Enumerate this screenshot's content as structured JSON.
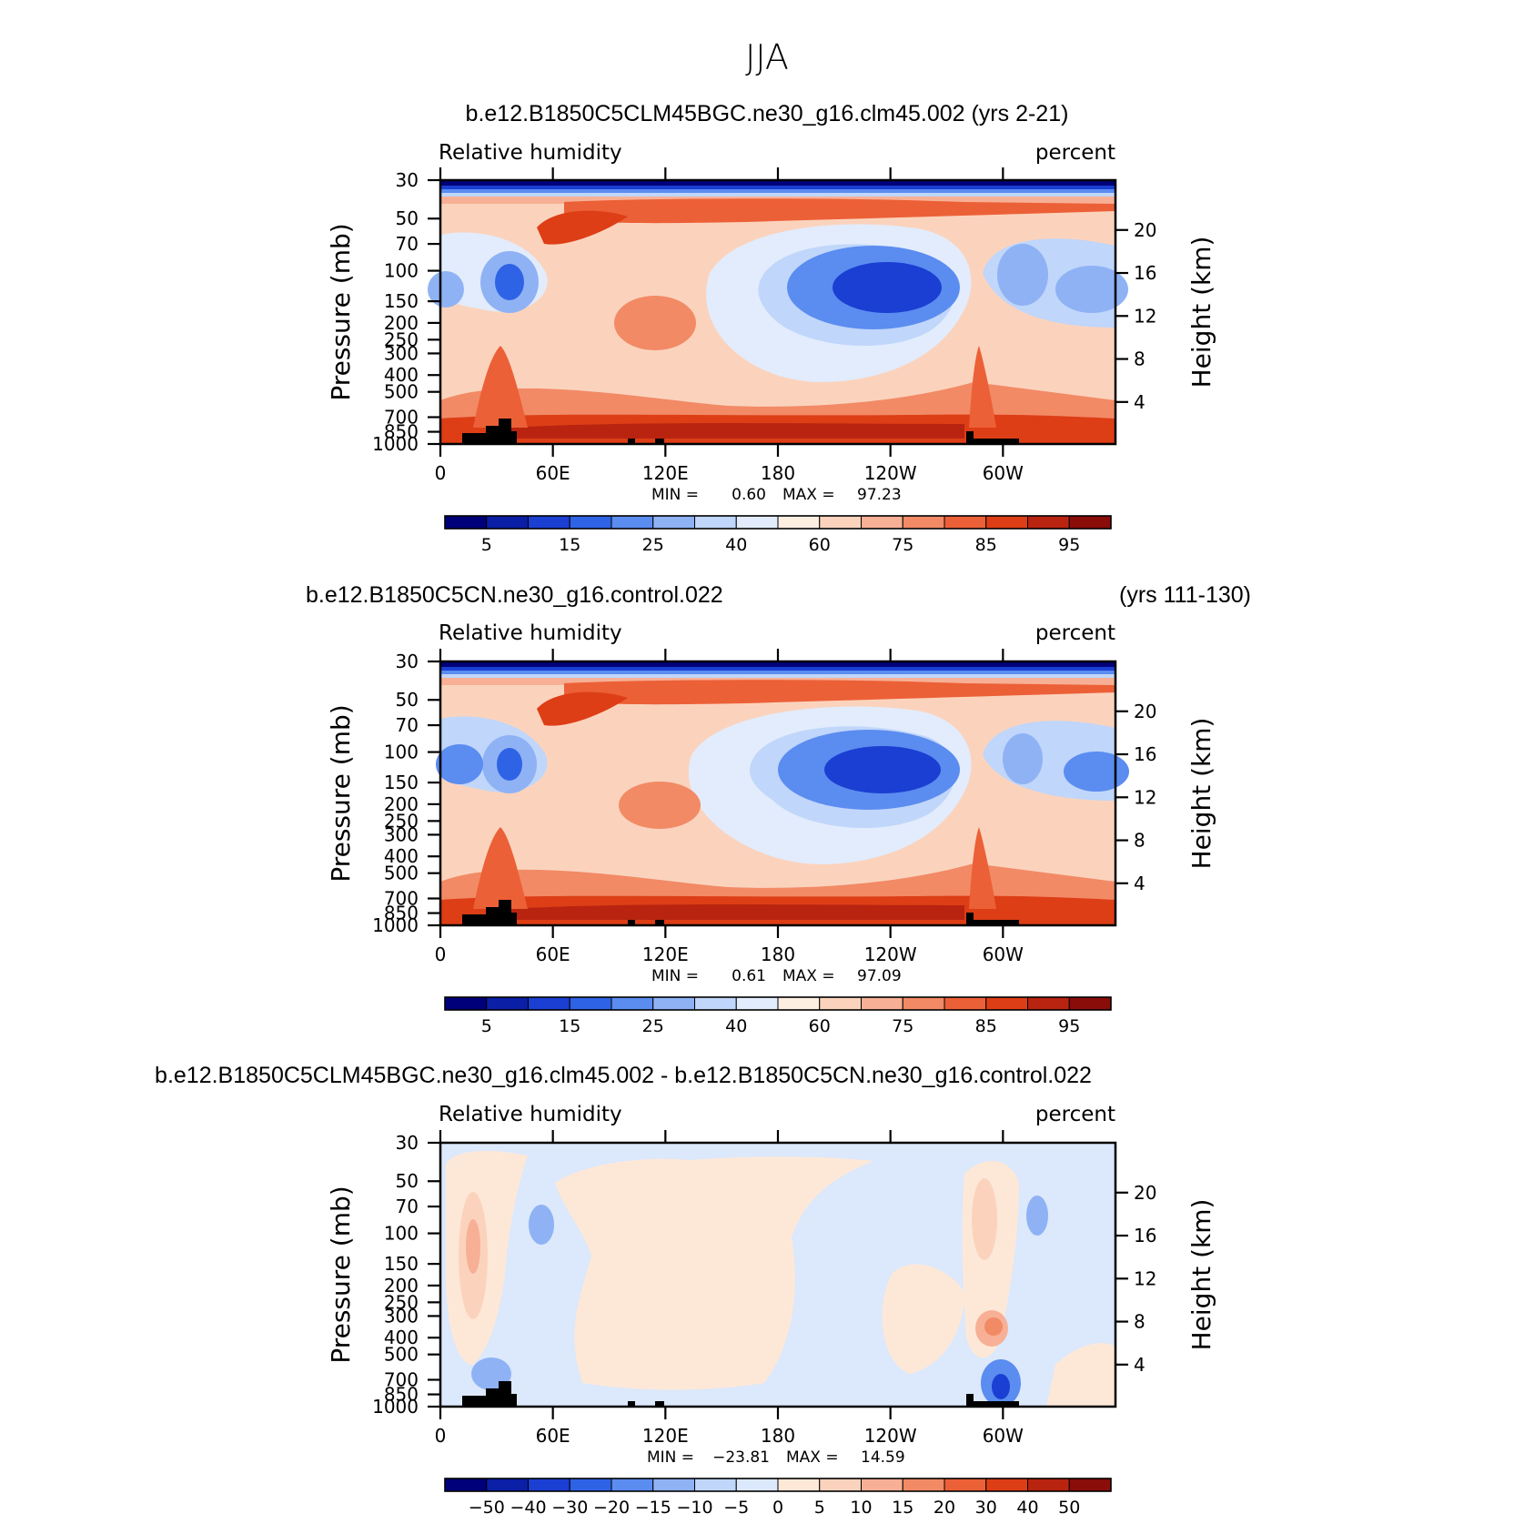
{
  "figure_title": "JJA",
  "colors": {
    "abs_palette": [
      "#00007a",
      "#0a1fa6",
      "#1a3fd2",
      "#2f63e6",
      "#5b8cf0",
      "#8fb2f5",
      "#c0d6fa",
      "#e2ecfc",
      "#fdeee2",
      "#fbd3bd",
      "#f7b095",
      "#f28a66",
      "#ec6037",
      "#dd3e16",
      "#b82410",
      "#8a0d0a"
    ],
    "diff_palette": [
      "#00007a",
      "#0a1fa6",
      "#1a3fd2",
      "#2f63e6",
      "#5b8cf0",
      "#8fb2f5",
      "#c0d6fa",
      "#dce8fb",
      "#fde8d8",
      "#fbd3bd",
      "#f7b095",
      "#f28a66",
      "#ec6037",
      "#dd3e16",
      "#b82410",
      "#8a0d0a"
    ],
    "terrain": "#000000"
  },
  "chart_data": [
    {
      "type": "heatmap",
      "panel": "top",
      "title": "b.e12.B1850C5CLM45BGC.ne30_g16.clm45.002 (yrs 2-21)",
      "title_right": "",
      "variable": "Relative humidity",
      "units": "percent",
      "xlabel": "",
      "ylabel": "Pressure (mb)",
      "ylabel_right": "Height (km)",
      "x_ticks": [
        "0",
        "60E",
        "120E",
        "180",
        "120W",
        "60W"
      ],
      "x_range": [
        0,
        360
      ],
      "y_ticks": [
        "30",
        "50",
        "70",
        "100",
        "150",
        "200",
        "250",
        "300",
        "400",
        "500",
        "700",
        "850",
        "1000"
      ],
      "y_range": [
        30,
        1000
      ],
      "height_ticks": [
        "20",
        "16",
        "12",
        "8",
        "4"
      ],
      "stats": {
        "min_label": "MIN =",
        "min": "0.60",
        "max_label": "MAX =",
        "max": "97.23"
      },
      "colorbar_labels": [
        "5",
        "15",
        "25",
        "40",
        "60",
        "75",
        "85",
        "95"
      ],
      "contour_levels": [
        3,
        5,
        10,
        15,
        20,
        25,
        30,
        40,
        50,
        60,
        70,
        75,
        80,
        85,
        90,
        95
      ]
    },
    {
      "type": "heatmap",
      "panel": "middle",
      "title": "b.e12.B1850C5CN.ne30_g16.control.022",
      "title_right": "(yrs 111-130)",
      "variable": "Relative humidity",
      "units": "percent",
      "xlabel": "",
      "ylabel": "Pressure (mb)",
      "ylabel_right": "Height (km)",
      "x_ticks": [
        "0",
        "60E",
        "120E",
        "180",
        "120W",
        "60W"
      ],
      "x_range": [
        0,
        360
      ],
      "y_ticks": [
        "30",
        "50",
        "70",
        "100",
        "150",
        "200",
        "250",
        "300",
        "400",
        "500",
        "700",
        "850",
        "1000"
      ],
      "y_range": [
        30,
        1000
      ],
      "height_ticks": [
        "20",
        "16",
        "12",
        "8",
        "4"
      ],
      "stats": {
        "min_label": "MIN =",
        "min": "0.61",
        "max_label": "MAX =",
        "max": "97.09"
      },
      "colorbar_labels": [
        "5",
        "15",
        "25",
        "40",
        "60",
        "75",
        "85",
        "95"
      ],
      "contour_levels": [
        3,
        5,
        10,
        15,
        20,
        25,
        30,
        40,
        50,
        60,
        70,
        75,
        80,
        85,
        90,
        95
      ]
    },
    {
      "type": "heatmap",
      "panel": "bottom",
      "title": "b.e12.B1850C5CLM45BGC.ne30_g16.clm45.002 - b.e12.B1850C5CN.ne30_g16.control.022",
      "title_right": "",
      "variable": "Relative humidity",
      "units": "percent",
      "xlabel": "",
      "ylabel": "Pressure (mb)",
      "ylabel_right": "Height (km)",
      "x_ticks": [
        "0",
        "60E",
        "120E",
        "180",
        "120W",
        "60W"
      ],
      "x_range": [
        0,
        360
      ],
      "y_ticks": [
        "30",
        "50",
        "70",
        "100",
        "150",
        "200",
        "250",
        "300",
        "400",
        "500",
        "700",
        "850",
        "1000"
      ],
      "y_range": [
        30,
        1000
      ],
      "height_ticks": [
        "20",
        "16",
        "12",
        "8",
        "4"
      ],
      "stats": {
        "min_label": "MIN =",
        "min": "−23.81",
        "max_label": "MAX =",
        "max": "14.59"
      },
      "colorbar_labels": [
        "−50",
        "−40",
        "−30",
        "−20",
        "−15",
        "−10",
        "−5",
        "0",
        "5",
        "10",
        "15",
        "20",
        "30",
        "40",
        "50"
      ],
      "contour_levels": [
        -60,
        -50,
        -40,
        -30,
        -20,
        -15,
        -10,
        -5,
        0,
        5,
        10,
        15,
        20,
        30,
        40,
        50
      ]
    }
  ]
}
